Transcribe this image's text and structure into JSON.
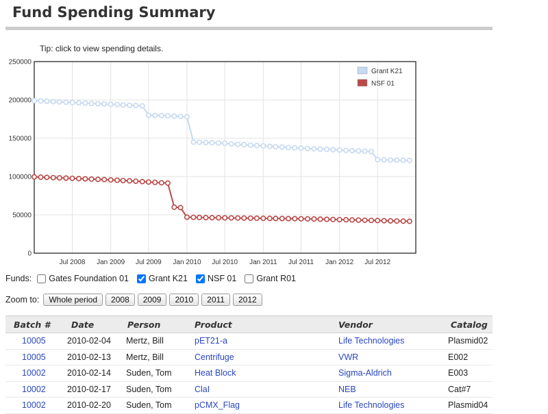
{
  "header": {
    "title": "Fund Spending Summary",
    "tip": "Tip: click to view spending details."
  },
  "chart_data": {
    "type": "line",
    "title": "",
    "xlabel": "",
    "ylabel": "",
    "ylim": [
      0,
      250000
    ],
    "yticks": [
      0,
      50000,
      100000,
      150000,
      200000,
      250000
    ],
    "xlim": [
      "2008-01-01",
      "2012-12-31"
    ],
    "xticks": [
      "2008-07-01",
      "2009-01-01",
      "2009-07-01",
      "2010-01-01",
      "2010-07-01",
      "2011-01-01",
      "2011-07-01",
      "2012-01-01",
      "2012-07-01"
    ],
    "xtick_labels": [
      "Jul 2008",
      "Jan 2009",
      "Jul 2009",
      "Jan 2010",
      "Jul 2010",
      "Jan 2011",
      "Jul 2011",
      "Jan 2012",
      "Jul 2012"
    ],
    "grid": true,
    "legend": "top-right",
    "x": [
      "2008-01-01",
      "2008-02-01",
      "2008-03-01",
      "2008-04-01",
      "2008-05-01",
      "2008-06-01",
      "2008-07-01",
      "2008-08-01",
      "2008-09-01",
      "2008-10-01",
      "2008-11-01",
      "2008-12-01",
      "2009-01-01",
      "2009-02-01",
      "2009-03-01",
      "2009-04-01",
      "2009-05-01",
      "2009-06-01",
      "2009-07-01",
      "2009-08-01",
      "2009-09-01",
      "2009-10-01",
      "2009-11-01",
      "2009-12-01",
      "2010-01-01",
      "2010-02-01",
      "2010-03-01",
      "2010-04-01",
      "2010-05-01",
      "2010-06-01",
      "2010-07-01",
      "2010-08-01",
      "2010-09-01",
      "2010-10-01",
      "2010-11-01",
      "2010-12-01",
      "2011-01-01",
      "2011-02-01",
      "2011-03-01",
      "2011-04-01",
      "2011-05-01",
      "2011-06-01",
      "2011-07-01",
      "2011-08-01",
      "2011-09-01",
      "2011-10-01",
      "2011-11-01",
      "2011-12-01",
      "2012-01-01",
      "2012-02-01",
      "2012-03-01",
      "2012-04-01",
      "2012-05-01",
      "2012-06-01",
      "2012-07-01",
      "2012-08-01",
      "2012-09-01",
      "2012-10-01",
      "2012-11-01",
      "2012-12-01"
    ],
    "series": [
      {
        "name": "Grant K21",
        "color": "#c5d9f1",
        "marker_fill": "#ffffff",
        "values": [
          199000,
          198600,
          198200,
          197800,
          197400,
          197000,
          196600,
          196200,
          195800,
          195400,
          195000,
          194600,
          194200,
          193800,
          193400,
          193000,
          192600,
          192200,
          180000,
          179800,
          179600,
          179200,
          178800,
          178400,
          178000,
          145000,
          144700,
          144400,
          144100,
          143800,
          143500,
          142500,
          142000,
          141500,
          141000,
          140500,
          140000,
          139500,
          139000,
          138500,
          138000,
          137500,
          137000,
          136600,
          136200,
          135800,
          135400,
          135000,
          134600,
          134200,
          133800,
          133400,
          133000,
          132600,
          122000,
          121800,
          121600,
          121400,
          121200,
          121000
        ]
      },
      {
        "name": "NSF 01",
        "color": "#b94a48",
        "marker_fill": "#ffffff",
        "values": [
          99500,
          99200,
          98900,
          98600,
          98300,
          98000,
          97700,
          97300,
          97000,
          96600,
          96300,
          96000,
          95600,
          95200,
          94800,
          94400,
          93900,
          93400,
          92900,
          92400,
          91900,
          91500,
          60000,
          59500,
          47000,
          46800,
          46600,
          46400,
          46300,
          46200,
          46100,
          46000,
          45900,
          45800,
          45700,
          45600,
          45500,
          45400,
          45300,
          45200,
          45100,
          45000,
          44900,
          44800,
          44600,
          44400,
          44200,
          44000,
          43800,
          43600,
          43400,
          43200,
          43000,
          42800,
          42600,
          42400,
          42200,
          42000,
          41800,
          41600
        ]
      }
    ]
  },
  "filters": {
    "label": "Funds:",
    "funds": [
      {
        "label": "Gates Foundation 01",
        "checked": false
      },
      {
        "label": "Grant K21",
        "checked": true
      },
      {
        "label": "NSF 01",
        "checked": true
      },
      {
        "label": "Grant R01",
        "checked": false
      }
    ]
  },
  "zoom": {
    "label": "Zoom to:",
    "buttons": [
      "Whole period",
      "2008",
      "2009",
      "2010",
      "2011",
      "2012"
    ]
  },
  "table": {
    "headers": [
      "Batch #",
      "Date",
      "Person",
      "Product",
      "Vendor",
      "Catalog"
    ],
    "rows": [
      [
        "10005",
        "2010-02-04",
        "Mertz, Bill",
        "pET21-a",
        "Life Technologies",
        "Plasmid02"
      ],
      [
        "10005",
        "2010-02-13",
        "Mertz, Bill",
        "Centrifuge",
        "VWR",
        "E002"
      ],
      [
        "10002",
        "2010-02-14",
        "Suden, Tom",
        "Heat Block",
        "Sigma-Aldrich",
        "E003"
      ],
      [
        "10002",
        "2010-02-17",
        "Suden, Tom",
        "ClaI",
        "NEB",
        "Cat#7"
      ],
      [
        "10002",
        "2010-02-20",
        "Suden, Tom",
        "pCMX_Flag",
        "Life Technologies",
        "Plasmid04"
      ]
    ]
  }
}
